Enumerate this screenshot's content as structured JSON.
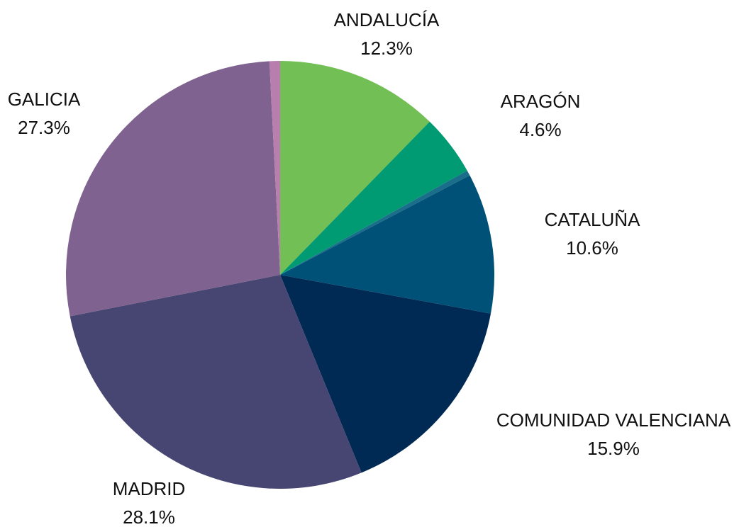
{
  "chart_data": {
    "type": "pie",
    "categories": [
      "ANDALUCÍA",
      "ARAGÓN",
      null,
      "CATALUÑA",
      "COMUNIDAD VALENCIANA",
      "MADRID",
      "GALICIA",
      null
    ],
    "values": [
      12.3,
      4.6,
      0.4,
      10.6,
      15.9,
      28.1,
      27.3,
      0.8
    ],
    "value_labels": [
      "12.3%",
      "4.6%",
      null,
      "10.6%",
      "15.9%",
      "28.1%",
      "27.3%",
      null
    ],
    "colors": [
      "#72bf55",
      "#009b72",
      "#1a6e8a",
      "#005178",
      "#002a54",
      "#474572",
      "#7f628f",
      "#b87fae"
    ]
  }
}
